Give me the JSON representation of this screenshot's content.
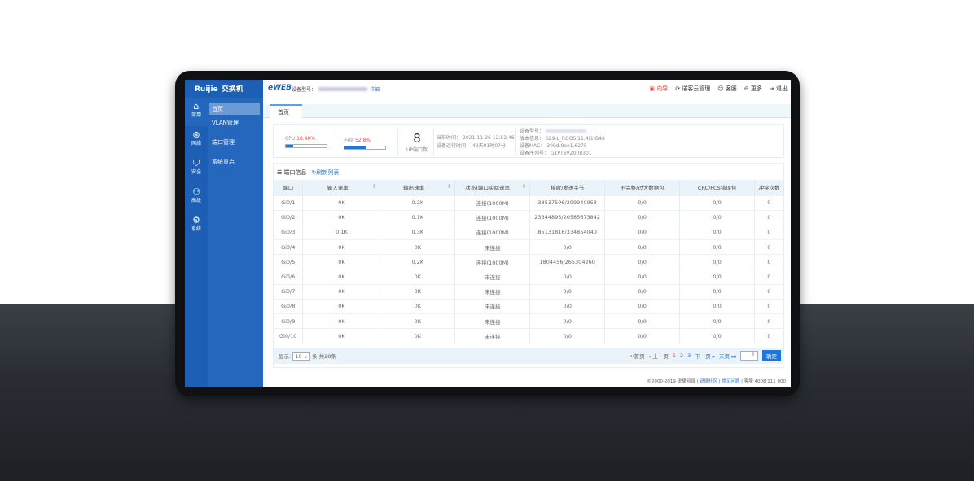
{
  "brand": {
    "logo": "Ruijie",
    "product": "交换机",
    "eweb": "eWEB"
  },
  "header": {
    "model_label": "设备型号：",
    "detail_link": "详细",
    "links": [
      {
        "label": "向导",
        "icon": "wizard-icon"
      },
      {
        "label": "诺客云管理",
        "icon": "cloud-icon"
      },
      {
        "label": "客服",
        "icon": "support-icon"
      },
      {
        "label": "更多",
        "icon": "more-icon"
      },
      {
        "label": "退出",
        "icon": "logout-icon"
      }
    ]
  },
  "sidebar": {
    "icons": [
      {
        "label": "常用",
        "icon": "home-icon"
      },
      {
        "label": "网络",
        "icon": "network-icon"
      },
      {
        "label": "安全",
        "icon": "shield-icon"
      },
      {
        "label": "高级",
        "icon": "advanced-icon"
      },
      {
        "label": "系统",
        "icon": "gear-icon"
      }
    ],
    "menu": [
      {
        "label": "首页"
      },
      {
        "label": "VLAN管理"
      },
      {
        "label": "端口管理"
      },
      {
        "label": "系统重启"
      }
    ]
  },
  "tabs": [
    {
      "label": "首页"
    }
  ],
  "summary": {
    "cpu_label": "CPU",
    "cpu_value": "18.40%",
    "cpu_percent": 18.4,
    "mem_label": "内存",
    "mem_value": "52.8%",
    "mem_percent": 52.8,
    "up_ports": "8",
    "up_ports_label": "UP端口数",
    "time_label": "当前时间：",
    "time": "2021-11-26 12:52:46",
    "uptime_label": "设备运行时间：",
    "uptime": "49天01时07分",
    "dev_model_label": "设备型号：",
    "version_label": "版本信息：",
    "version": "S29-L_RGOS 11.4(1)B48",
    "mac_label": "设备MAC：",
    "mac": "300d.9ee1.6275",
    "serial_label": "设备序列号：",
    "serial": "G1PT6VZ008301"
  },
  "ports": {
    "title": "端口信息",
    "refresh": "刷新列表",
    "columns": [
      "端口",
      "输入速率",
      "输出速率",
      "状态(端口实际速率)",
      "接收/发送字节",
      "不完整/过大数据包",
      "CRC/FCS错误包",
      "冲突次数"
    ],
    "rows": [
      [
        "Gi0/1",
        "0K",
        "0.2K",
        "连接(1000M)",
        "38537596/299940953",
        "0/0",
        "0/0",
        "0"
      ],
      [
        "Gi0/2",
        "0K",
        "0.1K",
        "连接(1000M)",
        "23344895/20585673842",
        "0/0",
        "0/0",
        "0"
      ],
      [
        "Gi0/3",
        "0.1K",
        "0.3K",
        "连接(1000M)",
        "85131816/334854040",
        "0/0",
        "0/0",
        "0"
      ],
      [
        "Gi0/4",
        "0K",
        "0K",
        "未连接",
        "0/0",
        "0/0",
        "0/0",
        "0"
      ],
      [
        "Gi0/5",
        "0K",
        "0.2K",
        "连接(1000M)",
        "1804456/265304260",
        "0/0",
        "0/0",
        "0"
      ],
      [
        "Gi0/6",
        "0K",
        "0K",
        "未连接",
        "0/0",
        "0/0",
        "0/0",
        "0"
      ],
      [
        "Gi0/7",
        "0K",
        "0K",
        "未连接",
        "0/0",
        "0/0",
        "0/0",
        "0"
      ],
      [
        "Gi0/8",
        "0K",
        "0K",
        "未连接",
        "0/0",
        "0/0",
        "0/0",
        "0"
      ],
      [
        "Gi0/9",
        "0K",
        "0K",
        "未连接",
        "0/0",
        "0/0",
        "0/0",
        "0"
      ],
      [
        "Gi0/10",
        "0K",
        "0K",
        "未连接",
        "0/0",
        "0/0",
        "0/0",
        "0"
      ]
    ]
  },
  "pager": {
    "show_label": "显示:",
    "page_size": "10",
    "total": "条 共28条",
    "first": "首页",
    "prev": "上一页",
    "pages": [
      "1",
      "2",
      "3"
    ],
    "next": "下一页",
    "last": "末页",
    "goto": "1",
    "confirm": "确定"
  },
  "footer": {
    "copyright": "©2000-2019 锐捷网络",
    "community": "锐捷社区",
    "faq": "常见问题",
    "hotline_label": "客服",
    "hotline": "4008 111 000"
  }
}
